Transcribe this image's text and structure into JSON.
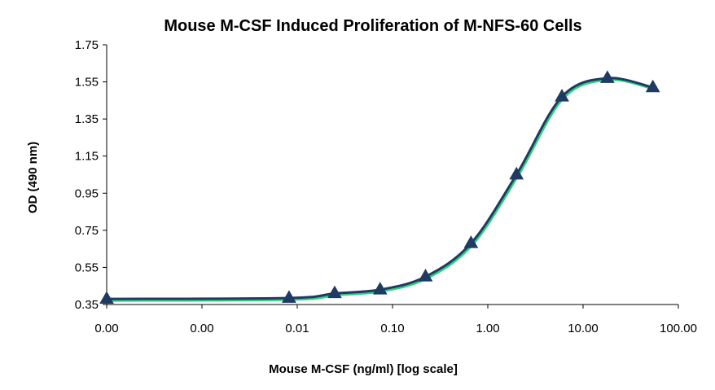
{
  "chart_data": {
    "type": "line",
    "title": "Mouse M-CSF Induced Proliferation of M-NFS-60 Cells",
    "xlabel": "Mouse M-CSF (ng/ml) [log scale]",
    "ylabel": "OD (490 nm)",
    "x_scale": "log",
    "xlim": [
      0.0001,
      100
    ],
    "ylim": [
      0.35,
      1.75
    ],
    "x_tick_labels": [
      "0.00",
      "0.00",
      "0.01",
      "0.10",
      "1.00",
      "10.00",
      "100.00"
    ],
    "y_tick_labels": [
      "0.35",
      "0.55",
      "0.75",
      "0.95",
      "1.15",
      "1.35",
      "1.55",
      "1.75"
    ],
    "grid": false,
    "legend": "none",
    "series": [
      {
        "x": [
          0.0001,
          0.0082,
          0.0247,
          0.0741,
          0.222,
          0.667,
          2.0,
          6.0,
          18.0,
          54.0
        ],
        "y": [
          0.38,
          0.385,
          0.41,
          0.43,
          0.5,
          0.68,
          1.05,
          1.47,
          1.57,
          1.52
        ]
      }
    ],
    "colors": {
      "curve": "#1f3b63",
      "curve_shadow": "#2fd07a",
      "marker": "#1f3b63",
      "axis": "#000000"
    }
  }
}
